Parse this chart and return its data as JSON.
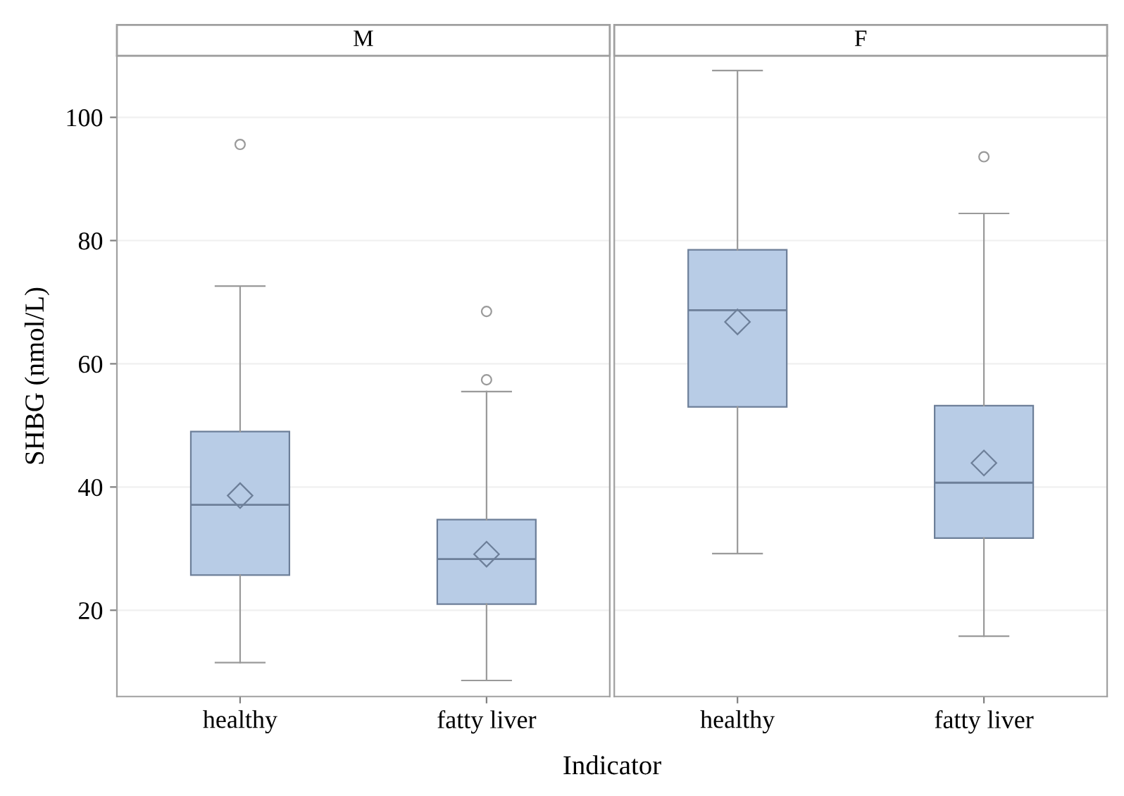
{
  "chart_data": [
    {
      "type": "box",
      "title": "M",
      "ylabel": "SHBG (nmol/L)",
      "xlabel": "Indicator",
      "categories": [
        "healthy",
        "fatty liver"
      ],
      "color": "#b8cce6",
      "ylim": [
        6,
        110
      ],
      "yticks": [
        20,
        40,
        60,
        80,
        100
      ],
      "grid": "y",
      "boxes": [
        {
          "low": 11.5,
          "q1": 25.7,
          "median": 37.1,
          "q3": 49.0,
          "high": 72.6,
          "mean": 38.6,
          "outliers": [
            95.6
          ]
        },
        {
          "low": 8.6,
          "q1": 21.0,
          "median": 28.3,
          "q3": 34.7,
          "high": 55.5,
          "mean": 29.1,
          "outliers": [
            57.4,
            68.5
          ]
        }
      ]
    },
    {
      "type": "box",
      "title": "F",
      "categories": [
        "healthy",
        "fatty liver"
      ],
      "color": "#b8cce6",
      "ylim": [
        6,
        110
      ],
      "yticks": [
        20,
        40,
        60,
        80,
        100
      ],
      "grid": "y",
      "tick_labels": "x",
      "boxes": [
        {
          "low": 29.2,
          "q1": 53.0,
          "median": 68.7,
          "q3": 78.5,
          "high": 107.6,
          "mean": 66.8
        },
        {
          "low": 15.8,
          "q1": 31.7,
          "median": 40.7,
          "q3": 53.2,
          "high": 84.4,
          "mean": 43.9,
          "outliers": [
            93.6
          ]
        }
      ]
    }
  ]
}
